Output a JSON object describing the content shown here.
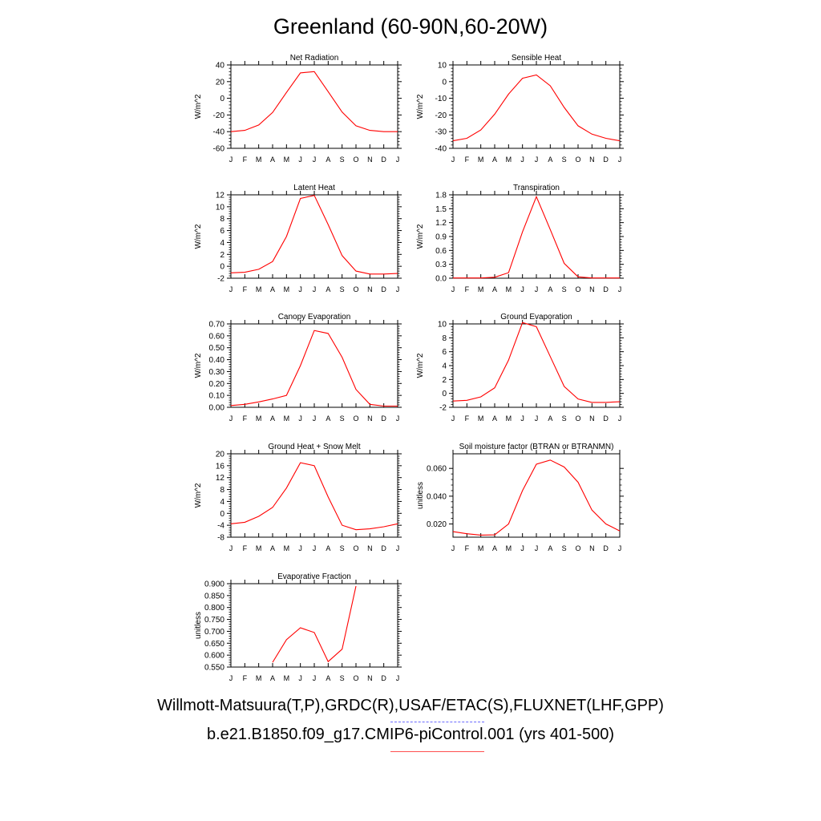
{
  "page": {
    "title": "Greenland (60-90N,60-20W)"
  },
  "legend": {
    "observations": "Willmott-Matsuura(T,P),GRDC(R),USAF/ETAC(S),FLUXNET(LHF,GPP)",
    "model": "b.e21.B1850.f09_g17.CMIP6-piControl.001 (yrs 401-500)",
    "observations_color": "#6a6aff",
    "model_color": "#ff0000"
  },
  "chart_data": [
    {
      "type": "line",
      "title": "Net Radiation",
      "ylabel": "W/m^2",
      "x": [
        "J",
        "F",
        "M",
        "A",
        "M",
        "J",
        "J",
        "A",
        "S",
        "O",
        "N",
        "D",
        "J"
      ],
      "ylim": [
        -60,
        40
      ],
      "yticks": [
        -60,
        -40,
        -20,
        0,
        20,
        40
      ],
      "ytick_labels": [
        "-60",
        "-40",
        "-20",
        "0",
        "20",
        "40"
      ],
      "series": [
        {
          "values": [
            -40,
            -38.5,
            -32,
            -17,
            7,
            30.5,
            32,
            8,
            -16.5,
            -33,
            -38.5,
            -40,
            -40
          ],
          "color": "#ff0000"
        }
      ]
    },
    {
      "type": "line",
      "title": "Sensible Heat",
      "ylabel": "W/m^2",
      "x": [
        "J",
        "F",
        "M",
        "A",
        "M",
        "J",
        "J",
        "A",
        "S",
        "O",
        "N",
        "D",
        "J"
      ],
      "ylim": [
        -40,
        10
      ],
      "yticks": [
        -40,
        -30,
        -20,
        -10,
        0,
        10
      ],
      "ytick_labels": [
        "-40",
        "-30",
        "-20",
        "-10",
        "0",
        "10"
      ],
      "series": [
        {
          "values": [
            -35.5,
            -34,
            -29,
            -19.5,
            -7.5,
            2,
            4,
            -2.5,
            -15.5,
            -26.5,
            -31.5,
            -34,
            -35.5
          ],
          "color": "#ff0000"
        }
      ]
    },
    {
      "type": "line",
      "title": "Latent Heat",
      "ylabel": "W/m^2",
      "x": [
        "J",
        "F",
        "M",
        "A",
        "M",
        "J",
        "J",
        "A",
        "S",
        "O",
        "N",
        "D",
        "J"
      ],
      "ylim": [
        -2,
        12
      ],
      "yticks": [
        -2,
        0,
        2,
        4,
        6,
        8,
        10,
        12
      ],
      "ytick_labels": [
        "-2",
        "0",
        "2",
        "4",
        "6",
        "8",
        "10",
        "12"
      ],
      "series": [
        {
          "values": [
            -1.1,
            -1.0,
            -0.5,
            0.8,
            5.0,
            11.4,
            11.9,
            7.0,
            1.8,
            -0.8,
            -1.3,
            -1.3,
            -1.2
          ],
          "color": "#ff0000"
        }
      ]
    },
    {
      "type": "line",
      "title": "Transpiration",
      "ylabel": "W/m^2",
      "x": [
        "J",
        "F",
        "M",
        "A",
        "M",
        "J",
        "J",
        "A",
        "S",
        "O",
        "N",
        "D",
        "J"
      ],
      "ylim": [
        0,
        1.8
      ],
      "yticks": [
        0,
        0.3,
        0.6,
        0.9,
        1.2,
        1.5,
        1.8
      ],
      "ytick_labels": [
        "0.0",
        "0.3",
        "0.6",
        "0.9",
        "1.2",
        "1.5",
        "1.8"
      ],
      "series": [
        {
          "values": [
            0.005,
            0.005,
            0.005,
            0.02,
            0.12,
            1.0,
            1.76,
            1.05,
            0.32,
            0.03,
            0.005,
            0.005,
            0.005
          ],
          "color": "#ff0000"
        }
      ]
    },
    {
      "type": "line",
      "title": "Canopy Evaporation",
      "ylabel": "W/m^2",
      "x": [
        "J",
        "F",
        "M",
        "A",
        "M",
        "J",
        "J",
        "A",
        "S",
        "O",
        "N",
        "D",
        "J"
      ],
      "ylim": [
        0,
        0.7
      ],
      "yticks": [
        0,
        0.1,
        0.2,
        0.3,
        0.4,
        0.5,
        0.6,
        0.7
      ],
      "ytick_labels": [
        "0.00",
        "0.10",
        "0.20",
        "0.30",
        "0.40",
        "0.50",
        "0.60",
        "0.70"
      ],
      "series": [
        {
          "values": [
            0.015,
            0.025,
            0.045,
            0.07,
            0.1,
            0.35,
            0.645,
            0.62,
            0.42,
            0.15,
            0.025,
            0.01,
            0.01
          ],
          "color": "#ff0000"
        }
      ]
    },
    {
      "type": "line",
      "title": "Ground Evaporation",
      "ylabel": "W/m^2",
      "x": [
        "J",
        "F",
        "M",
        "A",
        "M",
        "J",
        "J",
        "A",
        "S",
        "O",
        "N",
        "D",
        "J"
      ],
      "ylim": [
        -2,
        10
      ],
      "yticks": [
        -2,
        0,
        2,
        4,
        6,
        8,
        10
      ],
      "ytick_labels": [
        "-2",
        "0",
        "2",
        "4",
        "6",
        "8",
        "10"
      ],
      "series": [
        {
          "values": [
            -1.1,
            -1.0,
            -0.5,
            0.8,
            4.8,
            10.2,
            9.6,
            5.3,
            1.0,
            -0.8,
            -1.3,
            -1.3,
            -1.2
          ],
          "color": "#ff0000"
        }
      ]
    },
    {
      "type": "line",
      "title": "Ground Heat + Snow Melt",
      "ylabel": "W/m^2",
      "x": [
        "J",
        "F",
        "M",
        "A",
        "M",
        "J",
        "J",
        "A",
        "S",
        "O",
        "N",
        "D",
        "J"
      ],
      "ylim": [
        -8,
        20
      ],
      "yticks": [
        -8,
        -4,
        0,
        4,
        8,
        12,
        16,
        20
      ],
      "ytick_labels": [
        "-8",
        "-4",
        "0",
        "4",
        "8",
        "12",
        "16",
        "20"
      ],
      "series": [
        {
          "values": [
            -3.5,
            -3.0,
            -1.0,
            2.0,
            8.5,
            17.0,
            16.0,
            5.5,
            -4.0,
            -5.5,
            -5.2,
            -4.5,
            -3.5
          ],
          "color": "#ff0000"
        }
      ]
    },
    {
      "type": "line",
      "title": "Soil moisture factor (BTRAN or BTRANMN)",
      "ylabel": "unitless",
      "x": [
        "J",
        "F",
        "M",
        "A",
        "M",
        "J",
        "J",
        "A",
        "S",
        "O",
        "N",
        "D",
        "J"
      ],
      "ylim": [
        0.0105,
        0.0705
      ],
      "yticks": [
        0.02,
        0.04,
        0.06
      ],
      "ytick_labels": [
        "0.020",
        "0.040",
        "0.060"
      ],
      "series": [
        {
          "values": [
            0.0145,
            0.013,
            0.012,
            0.0122,
            0.02,
            0.044,
            0.063,
            0.066,
            0.061,
            0.05,
            0.03,
            0.02,
            0.015
          ],
          "color": "#ff0000"
        }
      ]
    },
    {
      "type": "line",
      "title": "Evaporative Fraction",
      "ylabel": "unitless",
      "x": [
        "J",
        "F",
        "M",
        "A",
        "M",
        "J",
        "J",
        "A",
        "S",
        "O",
        "N",
        "D",
        "J"
      ],
      "ylim": [
        0.55,
        0.9
      ],
      "yticks": [
        0.55,
        0.6,
        0.65,
        0.7,
        0.75,
        0.8,
        0.85,
        0.9
      ],
      "ytick_labels": [
        "0.550",
        "0.600",
        "0.650",
        "0.700",
        "0.750",
        "0.800",
        "0.850",
        "0.900"
      ],
      "series": [
        {
          "values": [
            null,
            null,
            null,
            0.57,
            0.665,
            0.715,
            0.695,
            0.573,
            0.625,
            0.89,
            null,
            null,
            null
          ],
          "color": "#ff0000"
        }
      ]
    }
  ]
}
